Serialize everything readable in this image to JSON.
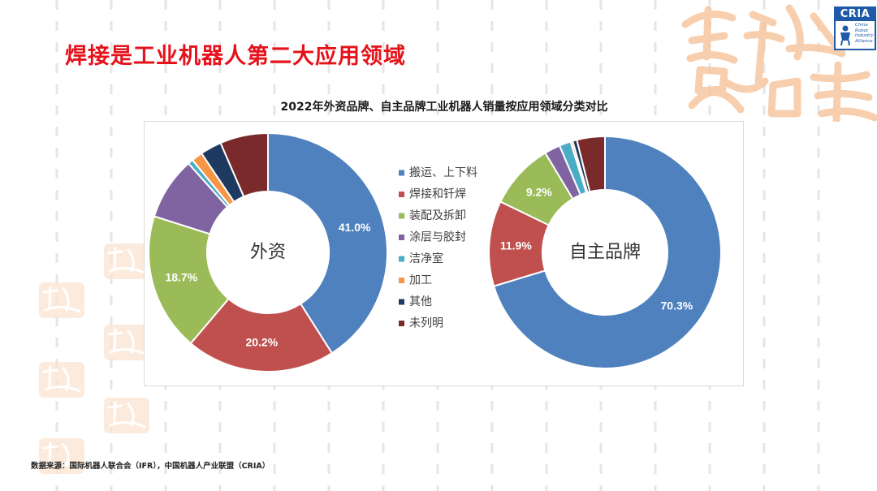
{
  "slide": {
    "title": "焊接是工业机器人第二大应用领域",
    "source": "数据来源：国际机器人联合会（IFR），中国机器人产业联盟（CRIA）"
  },
  "logo": {
    "abbr": "CRIA",
    "line1": "China",
    "line2": "Robot",
    "line3": "Industry",
    "line4": "Alliance"
  },
  "chart_data": {
    "type": "pie",
    "style": "donut",
    "title": "2022年外资品牌、自主品牌工业机器人销量按应用领域分类对比",
    "categories": [
      "搬运、上下料",
      "焊接和钎焊",
      "装配及拆卸",
      "涂层与胶封",
      "洁净室",
      "加工",
      "其他",
      "未列明"
    ],
    "colors": [
      "#4e81bd",
      "#c0504d",
      "#9bbb59",
      "#8064a2",
      "#4bacc6",
      "#f79646",
      "#1f3a60",
      "#7a2a2a"
    ],
    "series": [
      {
        "name": "外资",
        "values": [
          41.0,
          20.2,
          18.7,
          8.5,
          0.7,
          1.5,
          2.9,
          6.5
        ],
        "labels": [
          "41.0%",
          "20.2%",
          "18.7%",
          "",
          "",
          "",
          "",
          ""
        ]
      },
      {
        "name": "自主品牌",
        "values": [
          70.3,
          11.9,
          9.2,
          2.2,
          1.6,
          0.3,
          0.6,
          3.9
        ],
        "labels": [
          "70.3%",
          "11.9%",
          "9.2%",
          "",
          "",
          "",
          "",
          ""
        ]
      }
    ],
    "legend_position": "center"
  }
}
